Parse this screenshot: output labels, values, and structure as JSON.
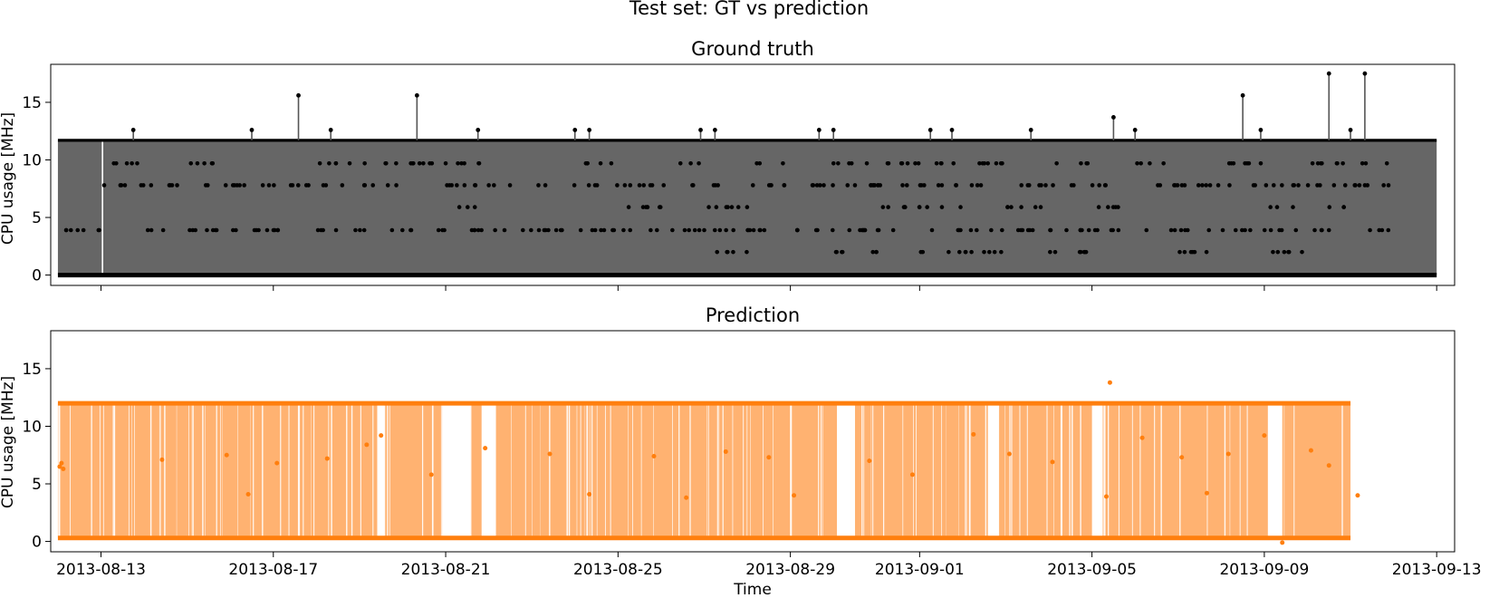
{
  "figure": {
    "suptitle": "Test set: GT vs prediction"
  },
  "chart_data": [
    {
      "type": "line",
      "title": "Ground truth",
      "xlabel": "",
      "ylabel": "CPU usage [MHz]",
      "x_range": [
        "2013-08-12",
        "2013-09-13"
      ],
      "xlim": [
        "2013-08-11T20:00",
        "2013-09-13T10:00"
      ],
      "ylim": [
        -0.9,
        18.3
      ],
      "yticks": [
        0,
        5,
        10,
        15
      ],
      "grid": false,
      "color": "#000000",
      "fill_color": "#666666",
      "baseline_value": 0,
      "upper_band_value": 11.7,
      "gap_dates": [
        "2013-08-13T00:50"
      ],
      "discrete_levels": [
        0,
        2,
        3.9,
        5.9,
        7.8,
        9.7,
        11.7
      ],
      "level_dates": {
        "9.7": [
          "2013-08-13",
          "2013-08-15",
          "2013-08-18",
          "2013-08-19",
          "2013-08-20",
          "2013-08-21",
          "2013-08-24",
          "2013-08-26",
          "2013-08-28",
          "2013-08-30",
          "2013-08-31",
          "2013-09-01",
          "2013-09-02",
          "2013-09-04",
          "2013-09-06",
          "2013-09-08",
          "2013-09-10",
          "2013-09-11"
        ],
        "7.8": [
          "2013-08-13",
          "2013-08-14",
          "2013-08-15",
          "2013-08-16",
          "2013-08-17",
          "2013-08-18",
          "2013-08-19",
          "2013-08-21",
          "2013-08-22",
          "2013-08-23",
          "2013-08-24",
          "2013-08-25",
          "2013-08-26",
          "2013-08-27",
          "2013-08-28",
          "2013-08-29",
          "2013-08-30",
          "2013-08-31",
          "2013-09-01",
          "2013-09-02",
          "2013-09-03",
          "2013-09-04",
          "2013-09-05",
          "2013-09-06",
          "2013-09-07",
          "2013-09-08",
          "2013-09-09",
          "2013-09-10",
          "2013-09-11"
        ],
        "5.9": [
          "2013-08-21",
          "2013-08-25",
          "2013-08-27",
          "2013-08-31",
          "2013-09-01",
          "2013-09-03",
          "2013-09-05",
          "2013-09-09",
          "2013-09-10"
        ],
        "3.9": [
          "2013-08-12",
          "2013-08-14",
          "2013-08-15",
          "2013-08-16",
          "2013-08-17",
          "2013-08-18",
          "2013-08-19",
          "2013-08-20",
          "2013-08-21",
          "2013-08-22",
          "2013-08-23",
          "2013-08-24",
          "2013-08-25",
          "2013-08-26",
          "2013-08-27",
          "2013-08-28",
          "2013-08-29",
          "2013-08-30",
          "2013-08-31",
          "2013-09-01",
          "2013-09-02",
          "2013-09-03",
          "2013-09-04",
          "2013-09-05",
          "2013-09-06",
          "2013-09-07",
          "2013-09-08",
          "2013-09-09",
          "2013-09-10",
          "2013-09-11"
        ],
        "2": [
          "2013-08-27",
          "2013-08-30",
          "2013-09-01",
          "2013-09-02",
          "2013-09-04",
          "2013-09-07",
          "2013-09-09"
        ]
      },
      "spikes": [
        {
          "x": "2013-08-13T18:00",
          "y": 12.6
        },
        {
          "x": "2013-08-16T12:00",
          "y": 12.6
        },
        {
          "x": "2013-08-17T14:00",
          "y": 15.6
        },
        {
          "x": "2013-08-18T08:00",
          "y": 12.6
        },
        {
          "x": "2013-08-20T08:00",
          "y": 15.6
        },
        {
          "x": "2013-08-21T18:00",
          "y": 12.6
        },
        {
          "x": "2013-08-24T00:00",
          "y": 12.6
        },
        {
          "x": "2013-08-24T08:00",
          "y": 12.6
        },
        {
          "x": "2013-08-26T22:00",
          "y": 12.6
        },
        {
          "x": "2013-08-27T06:00",
          "y": 12.6
        },
        {
          "x": "2013-08-29T16:00",
          "y": 12.6
        },
        {
          "x": "2013-08-30T00:00",
          "y": 12.6
        },
        {
          "x": "2013-09-01T06:00",
          "y": 12.6
        },
        {
          "x": "2013-09-01T18:00",
          "y": 12.6
        },
        {
          "x": "2013-09-03T14:00",
          "y": 12.6
        },
        {
          "x": "2013-09-05T12:00",
          "y": 13.7
        },
        {
          "x": "2013-09-06T00:00",
          "y": 12.6
        },
        {
          "x": "2013-09-08T12:00",
          "y": 15.6
        },
        {
          "x": "2013-09-08T22:00",
          "y": 12.6
        },
        {
          "x": "2013-09-10T12:00",
          "y": 17.5
        },
        {
          "x": "2013-09-11T08:00",
          "y": 17.5
        },
        {
          "x": "2013-09-11T00:00",
          "y": 12.6
        }
      ]
    },
    {
      "type": "line",
      "title": "Prediction",
      "xlabel": "Time",
      "ylabel": "CPU usage [MHz]",
      "x_range": [
        "2013-08-12",
        "2013-09-11"
      ],
      "xlim": [
        "2013-08-11T20:00",
        "2013-09-13T10:00"
      ],
      "ylim": [
        -0.9,
        18.3
      ],
      "yticks": [
        0,
        5,
        10,
        15
      ],
      "xticks": [
        "2013-08-13",
        "2013-08-17",
        "2013-08-21",
        "2013-08-25",
        "2013-08-29",
        "2013-09-01",
        "2013-09-05",
        "2013-09-09",
        "2013-09-13"
      ],
      "grid": false,
      "color": "#ff7f0e",
      "fill_color": "#ffb271",
      "baseline_value": 0.3,
      "upper_band_value": 12,
      "gaps": [
        [
          "2013-08-19T10:00",
          "2013-08-19T14:00"
        ],
        [
          "2013-08-20T22:00",
          "2013-08-21T14:00"
        ],
        [
          "2013-08-21T20:00",
          "2013-08-22T04:00"
        ],
        [
          "2013-08-30T02:00",
          "2013-08-30T12:00"
        ],
        [
          "2013-09-02T14:00",
          "2013-09-02T20:00"
        ],
        [
          "2013-09-05T00:00",
          "2013-09-05T06:00"
        ],
        [
          "2013-09-09T02:00",
          "2013-09-09T10:00"
        ]
      ],
      "scatter": [
        {
          "x": "2013-08-12T01:00",
          "y": 6.5
        },
        {
          "x": "2013-08-12T02:00",
          "y": 6.8
        },
        {
          "x": "2013-08-12T03:00",
          "y": 6.3
        },
        {
          "x": "2013-08-14T10:00",
          "y": 7.1
        },
        {
          "x": "2013-08-15T22:00",
          "y": 7.5
        },
        {
          "x": "2013-08-16T10:00",
          "y": 4.1
        },
        {
          "x": "2013-08-17T02:00",
          "y": 6.8
        },
        {
          "x": "2013-08-18T06:00",
          "y": 7.2
        },
        {
          "x": "2013-08-19T04:00",
          "y": 8.4
        },
        {
          "x": "2013-08-19T12:00",
          "y": 9.2
        },
        {
          "x": "2013-08-20T16:00",
          "y": 5.8
        },
        {
          "x": "2013-08-21T22:00",
          "y": 8.1
        },
        {
          "x": "2013-08-23T10:00",
          "y": 7.6
        },
        {
          "x": "2013-08-24T08:00",
          "y": 4.1
        },
        {
          "x": "2013-08-25T20:00",
          "y": 7.4
        },
        {
          "x": "2013-08-26T14:00",
          "y": 3.8
        },
        {
          "x": "2013-08-27T12:00",
          "y": 7.8
        },
        {
          "x": "2013-08-28T12:00",
          "y": 7.3
        },
        {
          "x": "2013-08-29T02:00",
          "y": 4.0
        },
        {
          "x": "2013-08-30T20:00",
          "y": 7.0
        },
        {
          "x": "2013-08-31T20:00",
          "y": 5.8
        },
        {
          "x": "2013-09-02T06:00",
          "y": 9.3
        },
        {
          "x": "2013-09-03T02:00",
          "y": 7.6
        },
        {
          "x": "2013-09-04T02:00",
          "y": 6.9
        },
        {
          "x": "2013-09-05T08:00",
          "y": 3.9
        },
        {
          "x": "2013-09-06T04:00",
          "y": 9.0
        },
        {
          "x": "2013-09-07T02:00",
          "y": 7.3
        },
        {
          "x": "2013-09-07T16:00",
          "y": 4.2
        },
        {
          "x": "2013-09-08T04:00",
          "y": 7.6
        },
        {
          "x": "2013-09-09T00:00",
          "y": 9.2
        },
        {
          "x": "2013-09-09T10:00",
          "y": -0.1
        },
        {
          "x": "2013-09-10T02:00",
          "y": 7.9
        },
        {
          "x": "2013-09-10T12:00",
          "y": 6.6
        },
        {
          "x": "2013-09-11T04:00",
          "y": 4.0
        },
        {
          "x": "2013-09-05T10:00",
          "y": 13.8
        }
      ]
    }
  ]
}
